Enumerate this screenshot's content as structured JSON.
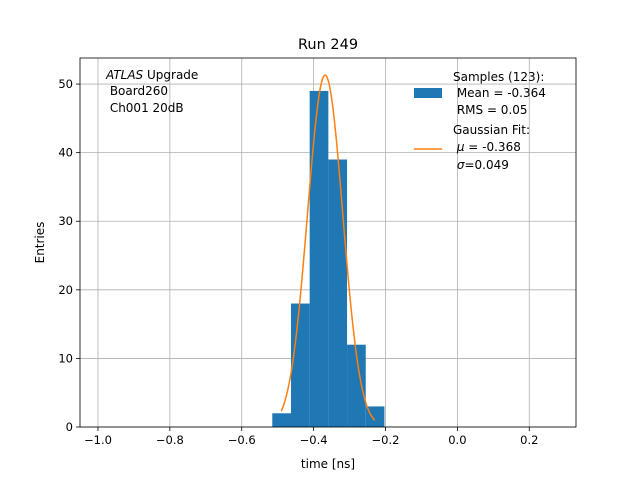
{
  "chart_data": {
    "type": "histogram",
    "title": "Run 249",
    "xlabel": "time [ns]",
    "ylabel": "Entries",
    "xlim": [
      -1.05,
      0.33
    ],
    "ylim": [
      0,
      53.8
    ],
    "xticks": [
      -1.0,
      -0.8,
      -0.6,
      -0.4,
      -0.2,
      0.0,
      0.2
    ],
    "xtick_labels": [
      "−1.0",
      "−0.8",
      "−0.6",
      "−0.4",
      "−0.2",
      "0.0",
      "0.2"
    ],
    "yticks": [
      0,
      10,
      20,
      30,
      40,
      50
    ],
    "ytick_labels": [
      "0",
      "10",
      "20",
      "30",
      "40",
      "50"
    ],
    "grid": true,
    "histogram": {
      "name": "Samples (123)",
      "color": "#1f77b4",
      "bins": [
        {
          "x0": -0.515,
          "x1": -0.463,
          "count": 2
        },
        {
          "x0": -0.463,
          "x1": -0.411,
          "count": 18
        },
        {
          "x0": -0.411,
          "x1": -0.359,
          "count": 49
        },
        {
          "x0": -0.359,
          "x1": -0.307,
          "count": 39
        },
        {
          "x0": -0.307,
          "x1": -0.255,
          "count": 12
        },
        {
          "x0": -0.255,
          "x1": -0.203,
          "count": 3
        }
      ]
    },
    "fit": {
      "name": "Gaussian Fit",
      "color": "#ff7f0e",
      "type": "gaussian",
      "mu": -0.368,
      "sigma": 0.049,
      "amplitude": 51.3,
      "x_range": [
        -0.49,
        -0.23
      ]
    },
    "annotation": {
      "line1_italic": "ATLAS",
      "line1_rest": " Upgrade",
      "line2": " Board260",
      "line3": " Ch001 20dB"
    },
    "legend": {
      "position": "top-right",
      "hist_title": "Samples (123):",
      "hist_mean": " Mean = -0.364",
      "hist_rms": " RMS = 0.05",
      "fit_title": "Gaussian Fit:",
      "fit_mu_symbol": "μ",
      "fit_mu_value": " = -0.368",
      "fit_sigma_symbol": "σ",
      "fit_sigma_value": "=0.049"
    }
  }
}
